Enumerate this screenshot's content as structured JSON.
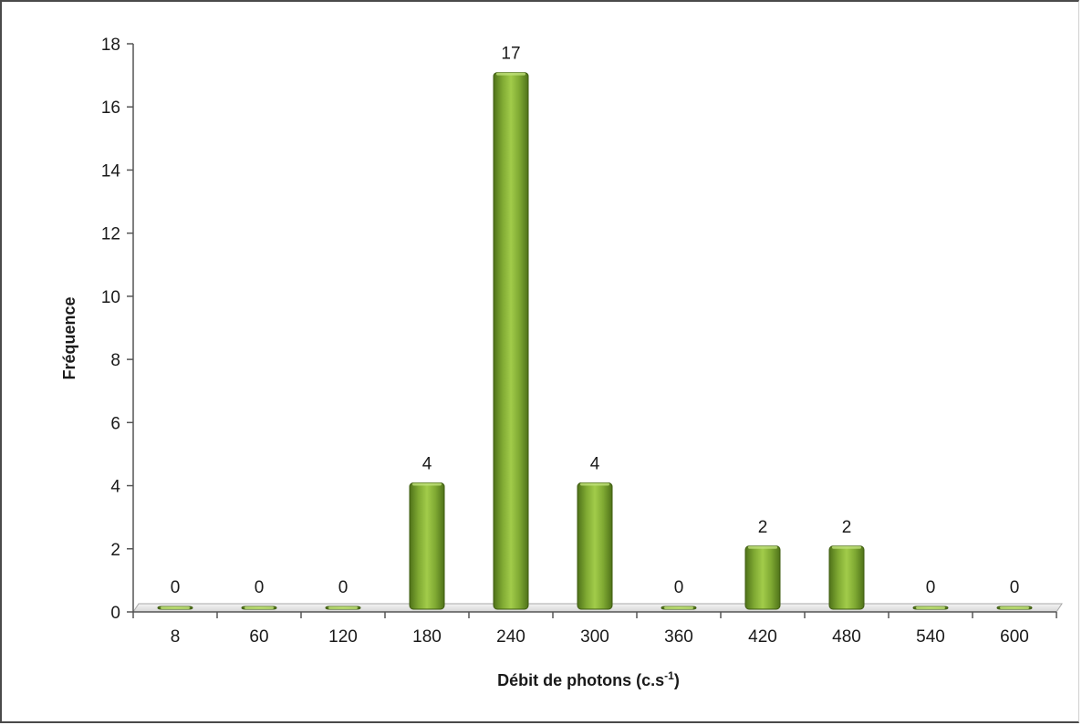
{
  "chart_data": {
    "type": "bar",
    "title": "",
    "categories": [
      "8",
      "60",
      "120",
      "180",
      "240",
      "300",
      "360",
      "420",
      "480",
      "540",
      "600"
    ],
    "values": [
      0,
      0,
      0,
      4,
      17,
      4,
      0,
      2,
      2,
      0,
      0
    ],
    "data_labels": [
      "0",
      "0",
      "0",
      "4",
      "17",
      "4",
      "0",
      "2",
      "2",
      "0",
      "0"
    ],
    "xlabel": "Débit de photons (c.s",
    "xlabel_superscript": "-1",
    "xlabel_suffix": ")",
    "ylabel": "Fréquence",
    "ylim": [
      0,
      18
    ],
    "yticks": [
      "0",
      "2",
      "4",
      "6",
      "8",
      "10",
      "12",
      "14",
      "16",
      "18"
    ],
    "grid": false,
    "legend": "none",
    "bar_color": "#8db83a"
  }
}
